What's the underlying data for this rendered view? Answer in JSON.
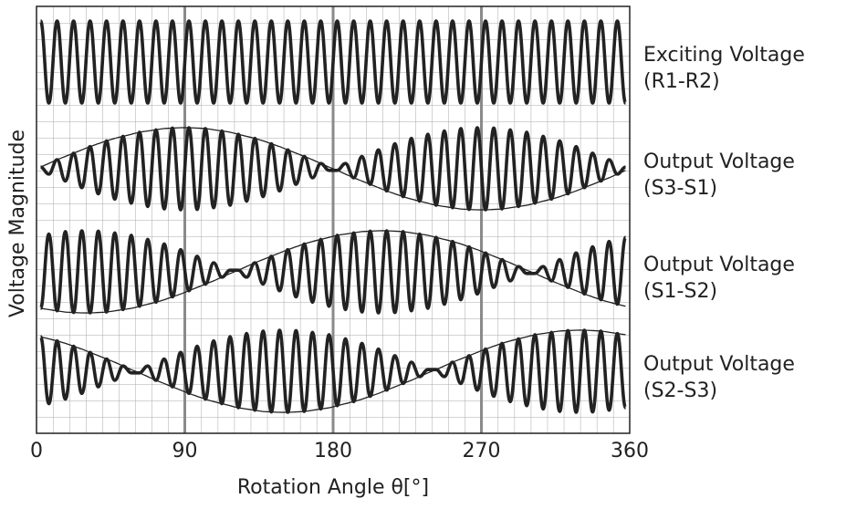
{
  "chart_data": {
    "type": "line",
    "xlabel": "Rotation Angle θ[°]",
    "ylabel": "Voltage Magnitude",
    "xlim": [
      0,
      360
    ],
    "xticks": [
      0,
      90,
      180,
      270,
      360
    ],
    "ylim": [
      -1,
      1
    ],
    "grid": true,
    "x": [
      2.5,
      7.5,
      12.5,
      17.5,
      22.5,
      27.5,
      32.5,
      37.5,
      42.5,
      47.5,
      52.5,
      57.5,
      62.5,
      67.5,
      72.5,
      77.5,
      82.5,
      87.5,
      92.5,
      97.5,
      102.5,
      107.5,
      112.5,
      117.5,
      122.5,
      127.5,
      132.5,
      137.5,
      142.5,
      147.5,
      152.5,
      157.5,
      162.5,
      167.5,
      172.5,
      177.5,
      182.5,
      187.5,
      192.5,
      197.5,
      202.5,
      207.5,
      212.5,
      217.5,
      222.5,
      227.5,
      232.5,
      237.5,
      242.5,
      247.5,
      252.5,
      257.5,
      262.5,
      267.5,
      272.5,
      277.5,
      282.5,
      287.5,
      292.5,
      297.5,
      302.5,
      307.5,
      312.5,
      317.5,
      322.5,
      327.5,
      332.5,
      337.5,
      342.5,
      347.5,
      352.5,
      357.5
    ],
    "series": [
      {
        "name": [
          "Exciting Voltage",
          "(R1-R2)"
        ],
        "color": "#222222",
        "values": [
          1,
          -1,
          1,
          -1,
          1,
          -1,
          1,
          -1,
          1,
          -1,
          1,
          -1,
          1,
          -1,
          1,
          -1,
          1,
          -1,
          1,
          -1,
          1,
          -1,
          1,
          -1,
          1,
          -1,
          1,
          -1,
          1,
          -1,
          1,
          -1,
          1,
          -1,
          1,
          -1,
          1,
          -1,
          1,
          -1,
          1,
          -1,
          1,
          -1,
          1,
          -1,
          1,
          -1,
          1,
          -1,
          1,
          -1,
          1,
          -1,
          1,
          -1,
          1,
          -1,
          1,
          -1,
          1,
          -1,
          1,
          -1,
          1,
          -1,
          1,
          -1,
          1,
          -1,
          1,
          -1
        ]
      },
      {
        "name": [
          "Output Voltage",
          "(S3-S1)"
        ],
        "color": "#222222",
        "values": [
          0.04,
          -0.13,
          0.22,
          -0.3,
          0.38,
          -0.46,
          0.54,
          -0.61,
          0.68,
          -0.74,
          0.79,
          -0.84,
          0.89,
          -0.92,
          0.95,
          -0.98,
          0.99,
          -1,
          1,
          -0.99,
          0.98,
          -0.95,
          0.92,
          -0.89,
          0.84,
          -0.79,
          0.74,
          -0.68,
          0.61,
          -0.54,
          0.46,
          -0.38,
          0.3,
          -0.22,
          0.13,
          -0.04,
          -0.04,
          0.13,
          -0.22,
          0.3,
          -0.38,
          0.46,
          -0.54,
          0.61,
          -0.68,
          0.74,
          -0.79,
          0.84,
          -0.89,
          0.92,
          -0.95,
          0.98,
          -0.99,
          1,
          -1,
          0.99,
          -0.98,
          0.95,
          -0.92,
          0.89,
          -0.84,
          0.79,
          -0.74,
          0.68,
          -0.61,
          0.54,
          -0.46,
          0.38,
          -0.3,
          0.22,
          -0.13,
          0.04
        ],
        "envelope": [
          0.04,
          0.13,
          0.22,
          0.3,
          0.38,
          0.46,
          0.54,
          0.61,
          0.68,
          0.74,
          0.79,
          0.84,
          0.89,
          0.92,
          0.95,
          0.98,
          0.99,
          1,
          1,
          0.99,
          0.98,
          0.95,
          0.92,
          0.89,
          0.84,
          0.79,
          0.74,
          0.68,
          0.61,
          0.54,
          0.46,
          0.38,
          0.3,
          0.22,
          0.13,
          0.04,
          -0.04,
          -0.13,
          -0.22,
          -0.3,
          -0.38,
          -0.46,
          -0.54,
          -0.61,
          -0.68,
          -0.74,
          -0.79,
          -0.84,
          -0.89,
          -0.92,
          -0.95,
          -0.98,
          -0.99,
          -1,
          -1,
          -0.99,
          -0.98,
          -0.95,
          -0.92,
          -0.89,
          -0.84,
          -0.79,
          -0.74,
          -0.68,
          -0.61,
          -0.54,
          -0.46,
          -0.38,
          -0.3,
          -0.22,
          -0.13,
          -0.04
        ]
      },
      {
        "name": [
          "Output Voltage",
          "(S1-S2)"
        ],
        "color": "#222222",
        "values": [
          -0.89,
          0.92,
          -0.95,
          0.98,
          -0.99,
          1,
          -1,
          0.99,
          -0.98,
          0.95,
          -0.92,
          0.89,
          -0.84,
          0.79,
          -0.74,
          0.68,
          -0.61,
          0.54,
          -0.46,
          0.38,
          -0.3,
          0.22,
          -0.13,
          0.04,
          0.04,
          -0.13,
          0.22,
          -0.3,
          0.38,
          -0.46,
          0.54,
          -0.61,
          0.68,
          -0.74,
          0.79,
          -0.84,
          0.89,
          -0.92,
          0.95,
          -0.98,
          0.99,
          -1,
          1,
          -0.99,
          0.98,
          -0.95,
          0.92,
          -0.89,
          0.84,
          -0.79,
          0.74,
          -0.68,
          0.61,
          -0.54,
          0.46,
          -0.38,
          0.3,
          -0.22,
          0.13,
          -0.04,
          -0.04,
          0.13,
          -0.22,
          0.3,
          -0.38,
          0.46,
          -0.54,
          0.61,
          -0.68,
          0.74,
          -0.79,
          0.84
        ],
        "envelope": [
          -0.89,
          -0.92,
          -0.95,
          -0.98,
          -0.99,
          -1,
          -1,
          -0.99,
          -0.98,
          -0.95,
          -0.92,
          -0.89,
          -0.84,
          -0.79,
          -0.74,
          -0.68,
          -0.61,
          -0.54,
          -0.46,
          -0.38,
          -0.3,
          -0.22,
          -0.13,
          -0.04,
          0.04,
          0.13,
          0.22,
          0.3,
          0.38,
          0.46,
          0.54,
          0.61,
          0.68,
          0.74,
          0.79,
          0.84,
          0.89,
          0.92,
          0.95,
          0.98,
          0.99,
          1,
          1,
          0.99,
          0.98,
          0.95,
          0.92,
          0.89,
          0.84,
          0.79,
          0.74,
          0.68,
          0.61,
          0.54,
          0.46,
          0.38,
          0.3,
          0.22,
          0.13,
          0.04,
          -0.04,
          -0.13,
          -0.22,
          -0.3,
          -0.38,
          -0.46,
          -0.54,
          -0.61,
          -0.68,
          -0.74,
          -0.79,
          -0.84
        ]
      },
      {
        "name": [
          "Output Voltage",
          "(S2-S3)"
        ],
        "color": "#222222",
        "values": [
          0.84,
          -0.79,
          0.74,
          -0.68,
          0.61,
          -0.54,
          0.46,
          -0.38,
          0.3,
          -0.22,
          0.13,
          -0.04,
          -0.04,
          0.13,
          -0.22,
          0.3,
          -0.38,
          0.46,
          -0.54,
          0.61,
          -0.68,
          0.74,
          -0.79,
          0.84,
          -0.89,
          0.92,
          -0.95,
          0.98,
          -0.99,
          1,
          -1,
          0.99,
          -0.98,
          0.95,
          -0.92,
          0.89,
          -0.84,
          0.79,
          -0.74,
          0.68,
          -0.61,
          0.54,
          -0.46,
          0.38,
          -0.3,
          0.22,
          -0.13,
          0.04,
          0.04,
          -0.13,
          0.22,
          -0.3,
          0.38,
          -0.46,
          0.54,
          -0.61,
          0.68,
          -0.74,
          0.79,
          -0.84,
          0.89,
          -0.92,
          0.95,
          -0.98,
          0.99,
          -1,
          1,
          -0.99,
          0.98,
          -0.95,
          0.92,
          -0.89
        ],
        "envelope": [
          0.84,
          0.79,
          0.74,
          0.68,
          0.61,
          0.54,
          0.46,
          0.38,
          0.3,
          0.22,
          0.13,
          0.04,
          -0.04,
          -0.13,
          -0.22,
          -0.3,
          -0.38,
          -0.46,
          -0.54,
          -0.61,
          -0.68,
          -0.74,
          -0.79,
          -0.84,
          -0.89,
          -0.92,
          -0.95,
          -0.98,
          -0.99,
          -1,
          -1,
          -0.99,
          -0.98,
          -0.95,
          -0.92,
          -0.89,
          -0.84,
          -0.79,
          -0.74,
          -0.68,
          -0.61,
          -0.54,
          -0.46,
          -0.38,
          -0.3,
          -0.22,
          -0.13,
          -0.04,
          0.04,
          0.13,
          0.22,
          0.3,
          0.38,
          0.46,
          0.54,
          0.61,
          0.68,
          0.74,
          0.79,
          0.84,
          0.89,
          0.92,
          0.95,
          0.98,
          0.99,
          1,
          1,
          0.99,
          0.98,
          0.95,
          0.92,
          0.89
        ]
      }
    ]
  }
}
